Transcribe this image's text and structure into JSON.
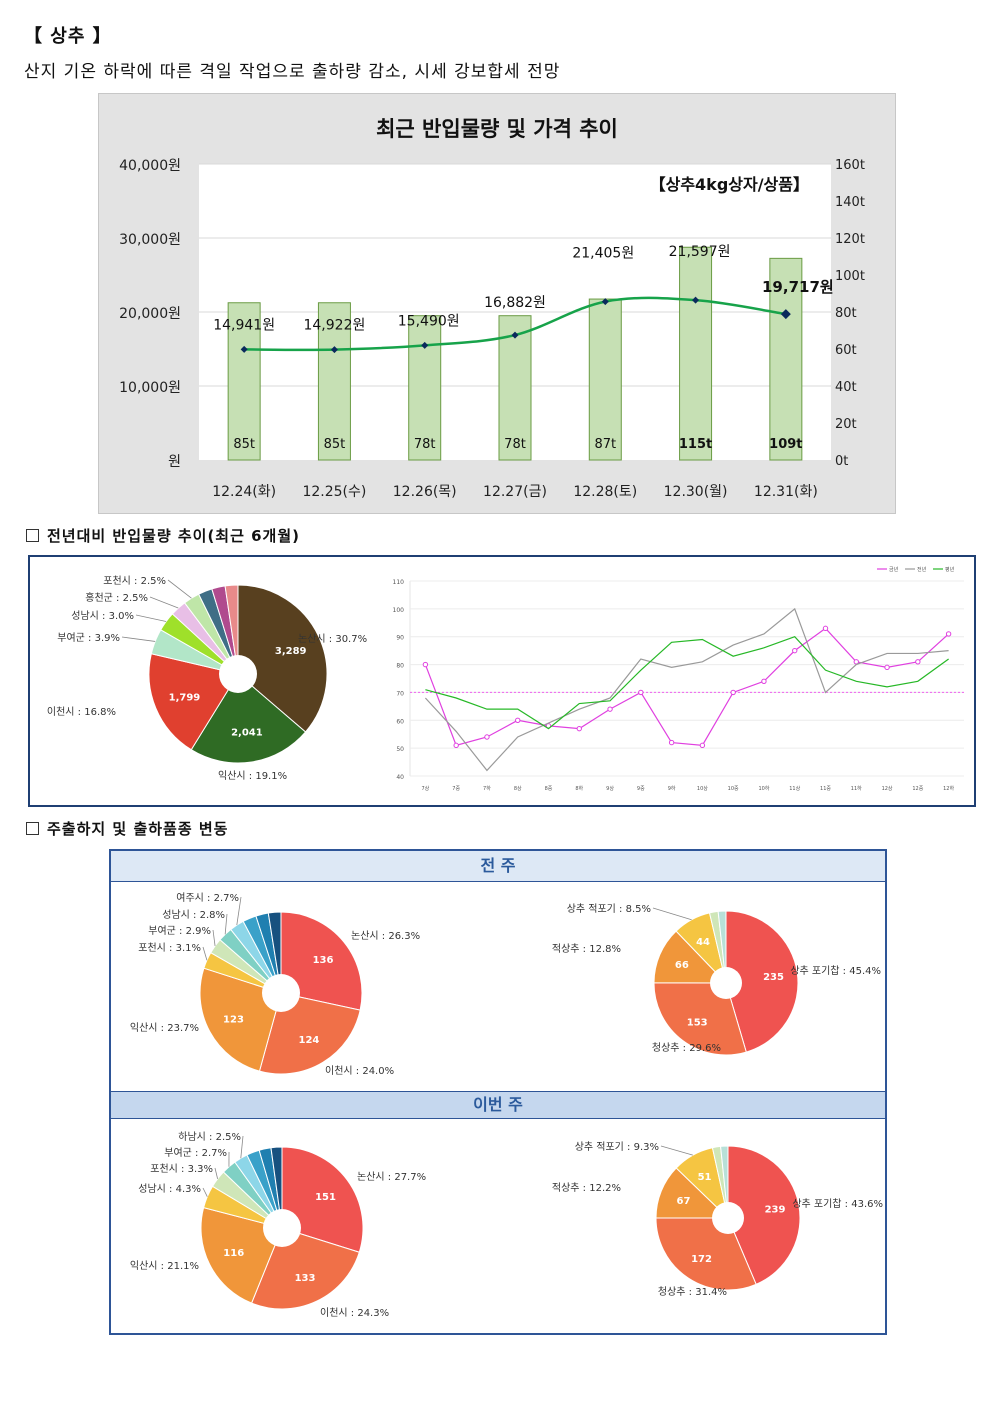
{
  "header": {
    "title": "【 상추 】",
    "subtitle": "산지 기온 하락에 따른 격일 작업으로 출하량 감소, 시세 강보합세 전망"
  },
  "main_chart": {
    "title": "최근 반입물량 및 가격 추이",
    "badge": "【상추4kg상자/상품】",
    "left_ticks": [
      "40,000원",
      "30,000원",
      "20,000원",
      "10,000원",
      "원"
    ],
    "right_ticks": [
      "160t",
      "140t",
      "120t",
      "100t",
      "80t",
      "60t",
      "40t",
      "20t",
      "0t"
    ]
  },
  "section1": {
    "label": "전년대비 반입물량 추이(최근 6개월)"
  },
  "section2": {
    "label": "주출하지 및 출하품종 변동"
  },
  "ship": {
    "band_prev": "전 주",
    "band_this": "이번 주"
  },
  "colors": {
    "bar_fill": "#c6e0b4",
    "bar_stroke": "#6a9b43",
    "price_line": "#17a34a",
    "price_marker": "#0a2a5c",
    "line_this_year": "#e040e0",
    "line_last_year": "#9a9a9a",
    "line_normal": "#27b827"
  },
  "chart_data": [
    {
      "type": "bar",
      "title": "최근 반입물량 및 가격 추이",
      "categories": [
        "12.24(화)",
        "12.25(수)",
        "12.26(목)",
        "12.27(금)",
        "12.28(토)",
        "12.30(월)",
        "12.31(화)"
      ],
      "series": [
        {
          "name": "반입물량",
          "values": [
            85,
            85,
            78,
            78,
            87,
            115,
            109
          ],
          "labels": [
            "85t",
            "85t",
            "78t",
            "78t",
            "87t",
            "115t",
            "109t"
          ],
          "axis": "right"
        },
        {
          "name": "가격",
          "type": "line",
          "values": [
            14941,
            14922,
            15490,
            16882,
            21405,
            21597,
            19717
          ],
          "labels": [
            "14,941원",
            "14,922원",
            "15,490원",
            "16,882원",
            "21,405원",
            "21,597원",
            "19,717원"
          ],
          "axis": "left"
        }
      ],
      "ylim_left": [
        0,
        40000
      ],
      "ylim_right": [
        0,
        160
      ]
    },
    {
      "type": "pie",
      "slices": [
        {
          "label": "논산시 : 30.7%",
          "value": 3289,
          "value_label": "3,289",
          "color": "#58401f"
        },
        {
          "label": "익산시 : 19.1%",
          "value": 2041,
          "value_label": "2,041",
          "color": "#2f6b24"
        },
        {
          "label": "이천시 : 16.8%",
          "value": 1799,
          "value_label": "1,799",
          "color": "#e0402f"
        },
        {
          "label": "부여군 : 3.9%",
          "value": 418,
          "color": "#b2e6c8"
        },
        {
          "label": "성남시 : 3.0%",
          "value": 321,
          "color": "#9fe02a"
        },
        {
          "label": "홍천군 : 2.5%",
          "value": 268,
          "color": "#e8bfe6"
        },
        {
          "label": "포천시 : 2.5%",
          "value": 268,
          "color": "#bfe6a8"
        },
        {
          "label": "",
          "value": 230,
          "color": "#3f6e86"
        },
        {
          "label": "",
          "value": 220,
          "color": "#b04a8e"
        },
        {
          "label": "",
          "value": 210,
          "color": "#e88a8a"
        }
      ]
    },
    {
      "type": "line",
      "legend": [
        "금년",
        "전년",
        "평년"
      ],
      "categories": [
        "7상",
        "7중",
        "7하",
        "8상",
        "8중",
        "8하",
        "9상",
        "9중",
        "9하",
        "10상",
        "10중",
        "10하",
        "11상",
        "11중",
        "11하",
        "12상",
        "12중",
        "12하"
      ],
      "ylim": [
        40,
        110
      ],
      "yticks": [
        "110",
        "100",
        "90",
        "80",
        "70",
        "60",
        "50",
        "40"
      ],
      "series": [
        {
          "name": "금년",
          "values": [
            80,
            51,
            54,
            60,
            58,
            57,
            64,
            70,
            52,
            51,
            70,
            74,
            85,
            93,
            81,
            79,
            81,
            91
          ]
        },
        {
          "name": "전년",
          "values": [
            68,
            56,
            42,
            54,
            59,
            64,
            68,
            82,
            79,
            81,
            87,
            91,
            100,
            70,
            80,
            84,
            84,
            85
          ]
        },
        {
          "name": "평년",
          "values": [
            71,
            68,
            64,
            64,
            57,
            66,
            67,
            78,
            88,
            89,
            83,
            86,
            90,
            78,
            74,
            72,
            74,
            82
          ]
        }
      ],
      "reference_line": 70
    },
    {
      "type": "pie",
      "title": "전 주 주출하지",
      "slices": [
        {
          "label": "논산시 : 26.3%",
          "value": 136,
          "value_label": "136",
          "color": "#ef5350"
        },
        {
          "label": "이천시 : 24.0%",
          "value": 124,
          "value_label": "124",
          "color": "#f07048"
        },
        {
          "label": "익산시 : 23.7%",
          "value": 123,
          "value_label": "123",
          "color": "#f0963a"
        },
        {
          "label": "포천시 : 3.1%",
          "value": 16,
          "color": "#f5c542"
        },
        {
          "label": "부여군 : 2.9%",
          "value": 15,
          "color": "#cfe6b8"
        },
        {
          "label": "성남시 : 2.8%",
          "value": 14,
          "color": "#7fd0c4"
        },
        {
          "label": "여주시 : 2.7%",
          "value": 14,
          "color": "#8dd6e8"
        },
        {
          "label": "",
          "value": 13,
          "color": "#3aa1c9"
        },
        {
          "label": "",
          "value": 12,
          "color": "#1f7fb0"
        },
        {
          "label": "",
          "value": 12,
          "color": "#17517f"
        }
      ]
    },
    {
      "type": "pie",
      "title": "전 주 출하품종",
      "slices": [
        {
          "label": "상추 포기찹 : 45.4%",
          "value": 235,
          "value_label": "235",
          "color": "#ef5350"
        },
        {
          "label": "청상추 : 29.6%",
          "value": 153,
          "value_label": "153",
          "color": "#f07048"
        },
        {
          "label": "적상추 : 12.8%",
          "value": 66,
          "value_label": "66",
          "color": "#f0963a"
        },
        {
          "label": "상추 적포기 : 8.5%",
          "value": 44,
          "value_label": "44",
          "color": "#f5c542"
        },
        {
          "label": "",
          "value": 10,
          "color": "#cfe6b8"
        },
        {
          "label": "",
          "value": 9,
          "color": "#b8e0d8"
        }
      ]
    },
    {
      "type": "pie",
      "title": "이번 주 주출하지",
      "slices": [
        {
          "label": "논산시 : 27.7%",
          "value": 151,
          "value_label": "151",
          "color": "#ef5350"
        },
        {
          "label": "이천시 : 24.3%",
          "value": 133,
          "value_label": "133",
          "color": "#f07048"
        },
        {
          "label": "익산시 : 21.1%",
          "value": 116,
          "value_label": "116",
          "color": "#f0963a"
        },
        {
          "label": "성남시 : 4.3%",
          "value": 23,
          "color": "#f5c542"
        },
        {
          "label": "포천시 : 3.3%",
          "value": 18,
          "color": "#cfe6b8"
        },
        {
          "label": "부여군 : 2.7%",
          "value": 15,
          "color": "#7fd0c4"
        },
        {
          "label": "하남시 : 2.5%",
          "value": 14,
          "color": "#8dd6e8"
        },
        {
          "label": "",
          "value": 13,
          "color": "#3aa1c9"
        },
        {
          "label": "",
          "value": 12,
          "color": "#1f7fb0"
        },
        {
          "label": "",
          "value": 11,
          "color": "#17517f"
        }
      ]
    },
    {
      "type": "pie",
      "title": "이번 주 출하품종",
      "slices": [
        {
          "label": "상추 포기찹 : 43.6%",
          "value": 239,
          "value_label": "239",
          "color": "#ef5350"
        },
        {
          "label": "청상추 : 31.4%",
          "value": 172,
          "value_label": "172",
          "color": "#f07048"
        },
        {
          "label": "적상추 : 12.2%",
          "value": 67,
          "value_label": "67",
          "color": "#f0963a"
        },
        {
          "label": "상추 적포기 : 9.3%",
          "value": 51,
          "value_label": "51",
          "color": "#f5c542"
        },
        {
          "label": "",
          "value": 10,
          "color": "#cfe6b8"
        },
        {
          "label": "",
          "value": 9,
          "color": "#b8e0d8"
        }
      ]
    }
  ]
}
